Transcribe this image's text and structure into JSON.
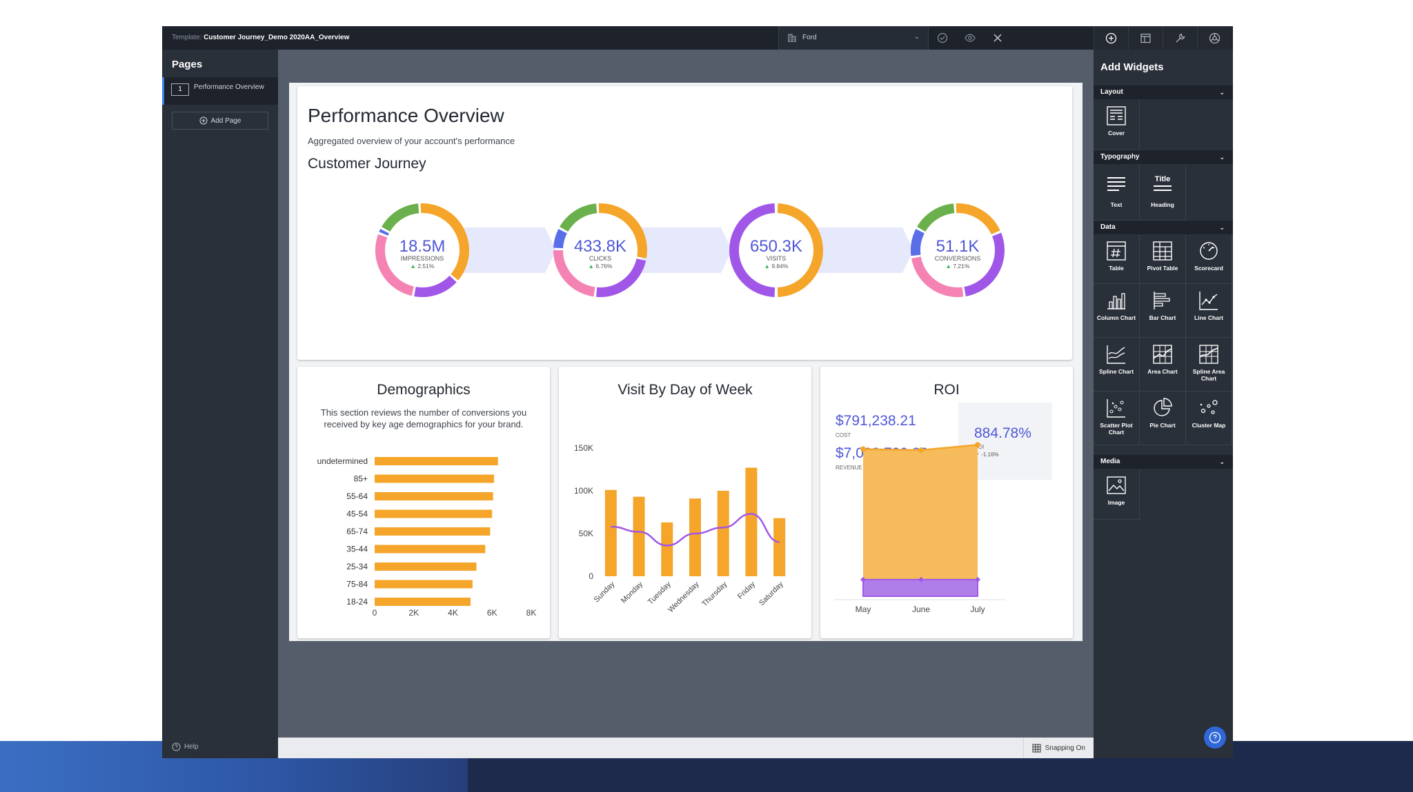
{
  "topbar": {
    "template_label": "Template:",
    "template_name": "Customer Journey_Demo 2020AA_Overview",
    "account": "Ford"
  },
  "pages_panel": {
    "title": "Pages",
    "items": [
      {
        "number": "1",
        "label": "Performance Overview"
      }
    ],
    "add_page": "Add Page",
    "help": "Help"
  },
  "report": {
    "title": "Performance Overview",
    "subtitle": "Aggregated overview of your account's performance",
    "section": "Customer Journey",
    "journey": [
      {
        "value": "18.5M",
        "label": "IMPRESSIONS",
        "change": "▲ 2.51%"
      },
      {
        "value": "433.8K",
        "label": "CLICKS",
        "change": "▲ 6.76%"
      },
      {
        "value": "650.3K",
        "label": "VISITS",
        "change": "▲ 9.84%"
      },
      {
        "value": "51.1K",
        "label": "CONVERSIONS",
        "change": "▲ 7.21%"
      }
    ],
    "demographics": {
      "title": "Demographics",
      "description": "This section reviews the number of conversions you received by key age demographics for your brand."
    },
    "visits": {
      "title": "Visit By Day of Week"
    },
    "roi": {
      "title": "ROI",
      "cost": "$791,238.21",
      "cost_label": "COST",
      "revenue": "$7,000,700.00",
      "revenue_label": "REVENUE",
      "roi_value": "884.78%",
      "roi_label": "ROI",
      "roi_change_arrow": "▼",
      "roi_change": "-1.16%"
    }
  },
  "status": {
    "snapping": "Snapping On"
  },
  "widgets_panel": {
    "title": "Add Widgets",
    "sections": {
      "layout": "Layout",
      "typography": "Typography",
      "data": "Data",
      "media": "Media"
    },
    "layout_items": [
      "Cover"
    ],
    "typography_items": [
      "Text",
      "Heading"
    ],
    "heading_glyph": "Title",
    "data_items": [
      "Table",
      "Pivot Table",
      "Scorecard",
      "Column Chart",
      "Bar Chart",
      "Line Chart",
      "Spline Chart",
      "Area Chart",
      "Spline Area Chart",
      "Scatter Plot Chart",
      "Pie Chart",
      "Cluster Map"
    ],
    "media_items": [
      "Image"
    ]
  },
  "colors": {
    "accent": "#4f57d8",
    "bar": "#f4a52a",
    "line": "#a057e8",
    "donut_green": "#6ab04c",
    "donut_orange": "#f4a52a",
    "donut_purple": "#a057e8",
    "donut_pink": "#f483b4",
    "donut_blue": "#5a6ee8"
  },
  "chart_data": [
    {
      "type": "bar",
      "orientation": "horizontal",
      "title": "Demographics",
      "categories": [
        "undetermined",
        "85+",
        "55-64",
        "45-54",
        "65-74",
        "35-44",
        "25-34",
        "75-84",
        "18-24"
      ],
      "values": [
        6300,
        6100,
        6050,
        6000,
        5900,
        5650,
        5200,
        5000,
        4900
      ],
      "xlim": [
        0,
        8000
      ],
      "xticks": [
        "0",
        "2K",
        "4K",
        "6K",
        "8K"
      ]
    },
    {
      "type": "bar",
      "title": "Visit By Day of Week",
      "categories": [
        "Sunday",
        "Monday",
        "Tuesday",
        "Wednesday",
        "Thursday",
        "Friday",
        "Saturday"
      ],
      "series": [
        {
          "type": "bar",
          "values": [
            101000,
            93000,
            63000,
            91000,
            100000,
            127000,
            68000
          ]
        },
        {
          "type": "spline",
          "values": [
            58000,
            52000,
            36000,
            50000,
            57000,
            73000,
            40000
          ]
        }
      ],
      "ylim": [
        0,
        150000
      ],
      "yticks": [
        "0",
        "50K",
        "100K",
        "150K"
      ]
    },
    {
      "type": "area",
      "title": "ROI",
      "categories": [
        "May",
        "June",
        "July"
      ],
      "series": [
        {
          "color": "#f4a52a",
          "values": [
            7000000,
            6950000,
            7200000
          ]
        },
        {
          "color": "#a057e8",
          "values": [
            791238,
            791238,
            791238
          ]
        }
      ],
      "ylim": [
        0,
        8000000
      ]
    }
  ]
}
